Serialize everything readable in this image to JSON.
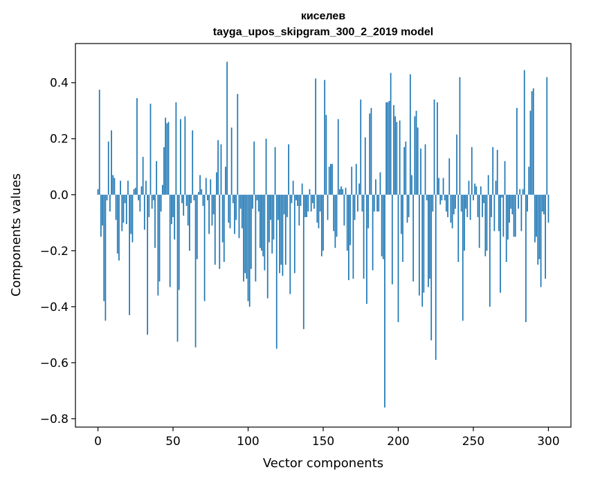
{
  "chart_data": {
    "type": "bar",
    "title": "киселев",
    "subtitle": "tayga_upos_skipgram_300_2_2019 model",
    "xlabel": "Vector components",
    "ylabel": "Components values",
    "xlim": [
      -15,
      315
    ],
    "ylim": [
      -0.83,
      0.54
    ],
    "xticks": [
      0,
      50,
      100,
      150,
      200,
      250,
      300
    ],
    "yticks": [
      -0.8,
      -0.6,
      -0.4,
      -0.2,
      0.0,
      0.2,
      0.4
    ],
    "ytick_labels": [
      "−0.8",
      "−0.6",
      "−0.4",
      "−0.2",
      "0.0",
      "0.2",
      "0.4"
    ],
    "grid": false,
    "bar_color": "#1f77b4",
    "values": [
      0.02,
      0.375,
      -0.15,
      -0.11,
      -0.38,
      -0.45,
      -0.02,
      0.19,
      -0.06,
      0.23,
      0.07,
      0.06,
      -0.09,
      -0.21,
      -0.235,
      0.05,
      -0.13,
      -0.1,
      -0.03,
      -0.105,
      0.05,
      -0.43,
      -0.14,
      -0.17,
      0.02,
      0.025,
      0.345,
      -0.02,
      -0.06,
      0.03,
      0.135,
      -0.125,
      0.05,
      -0.5,
      -0.08,
      0.325,
      -0.05,
      -0.02,
      -0.19,
      0.12,
      -0.36,
      -0.31,
      -0.06,
      0.035,
      0.17,
      0.275,
      0.255,
      0.26,
      -0.33,
      -0.105,
      -0.08,
      -0.16,
      0.33,
      -0.525,
      -0.34,
      0.27,
      -0.03,
      -0.075,
      0.28,
      -0.04,
      -0.11,
      -0.2,
      -0.03,
      0.23,
      -0.02,
      -0.545,
      -0.23,
      0.01,
      0.07,
      0.02,
      -0.04,
      -0.38,
      0.06,
      -0.02,
      -0.14,
      0.055,
      -0.11,
      -0.07,
      -0.25,
      0.08,
      0.195,
      -0.265,
      0.18,
      -0.17,
      -0.24,
      0.1,
      0.475,
      -0.1,
      -0.12,
      0.24,
      -0.03,
      -0.14,
      -0.09,
      0.36,
      -0.155,
      -0.05,
      -0.12,
      -0.31,
      -0.28,
      -0.3,
      -0.38,
      -0.4,
      -0.265,
      -0.05,
      0.19,
      -0.31,
      -0.02,
      -0.06,
      -0.19,
      -0.2,
      -0.22,
      -0.27,
      0.2,
      -0.37,
      -0.17,
      -0.09,
      -0.21,
      -0.16,
      0.17,
      -0.55,
      -0.09,
      -0.28,
      -0.25,
      -0.29,
      -0.07,
      -0.25,
      -0.08,
      0.18,
      -0.355,
      -0.03,
      0.05,
      -0.28,
      -0.02,
      -0.04,
      -0.11,
      -0.04,
      0.04,
      -0.48,
      -0.08,
      -0.08,
      -0.06,
      0.02,
      -0.06,
      -0.03,
      -0.05,
      0.415,
      -0.1,
      -0.12,
      -0.06,
      -0.22,
      -0.2,
      0.41,
      0.285,
      -0.09,
      0.1,
      0.11,
      0.11,
      -0.13,
      -0.19,
      -0.15,
      0.27,
      0.02,
      0.03,
      0.02,
      -0.11,
      0.025,
      -0.2,
      -0.305,
      -0.18,
      0.1,
      -0.3,
      -0.09,
      0.11,
      -0.06,
      0.04,
      0.34,
      -0.06,
      -0.3,
      0.205,
      -0.39,
      -0.12,
      0.29,
      0.31,
      -0.27,
      -0.06,
      0.055,
      -0.06,
      -0.06,
      0.08,
      -0.22,
      -0.23,
      -0.76,
      0.33,
      0.33,
      0.335,
      0.435,
      -0.32,
      0.32,
      0.28,
      0.26,
      -0.455,
      0.265,
      -0.14,
      -0.24,
      0.17,
      0.19,
      -0.1,
      -0.08,
      0.43,
      0.07,
      -0.31,
      0.28,
      0.3,
      0.24,
      -0.36,
      0.165,
      -0.4,
      -0.35,
      0.18,
      -0.02,
      -0.33,
      -0.3,
      -0.52,
      -0.06,
      0.34,
      -0.59,
      0.33,
      0.06,
      -0.035,
      -0.02,
      0.06,
      -0.02,
      -0.06,
      -0.08,
      0.13,
      -0.1,
      -0.12,
      -0.07,
      -0.05,
      0.215,
      -0.24,
      0.42,
      -0.06,
      -0.45,
      -0.2,
      -0.05,
      -0.08,
      0.05,
      -0.09,
      0.17,
      -0.02,
      0.04,
      0.03,
      -0.08,
      -0.19,
      0.03,
      -0.08,
      -0.03,
      -0.22,
      -0.2,
      0.07,
      -0.4,
      -0.08,
      0.17,
      -0.13,
      0.05,
      0.16,
      -0.13,
      -0.35,
      -0.01,
      -0.15,
      0.12,
      -0.24,
      -0.16,
      -0.1,
      -0.05,
      -0.07,
      -0.15,
      -0.15,
      0.31,
      -0.05,
      0.02,
      -0.13,
      0.02,
      0.445,
      -0.455,
      -0.06,
      0.1,
      0.3,
      0.37,
      0.38,
      -0.17,
      -0.15,
      -0.25,
      -0.23,
      -0.33,
      -0.06,
      -0.07,
      -0.3,
      0.42,
      -0.1
    ]
  }
}
